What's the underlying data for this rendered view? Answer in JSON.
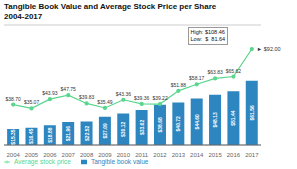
{
  "chart_data": {
    "type": "combo",
    "title": "Tangible Book Value and Average Stock Price per Share",
    "subtitle": "2004-2017",
    "categories": [
      "2004",
      "2005",
      "2006",
      "2007",
      "2008",
      "2009",
      "2010",
      "2011",
      "2012",
      "2013",
      "2014",
      "2015",
      "2016",
      "2017"
    ],
    "series": [
      {
        "name": "Tangible book value",
        "type": "bar",
        "color": "#2E86C1",
        "values": [
          15.35,
          16.45,
          18.88,
          21.96,
          22.52,
          27.09,
          30.12,
          33.62,
          38.68,
          40.72,
          44.6,
          48.13,
          51.44,
          61.56
        ],
        "value_labels": [
          "$15.35",
          "$16.45",
          "$18.88",
          "$21.96",
          "$22.52",
          "$27.09",
          "$30.12",
          "$33.62",
          "$38.68",
          "$40.72",
          "$44.60",
          "$48.13",
          "$51.44",
          "$61.56"
        ]
      },
      {
        "name": "Average stock price",
        "type": "line",
        "color": "#58D68D",
        "marker": "circle",
        "values": [
          38.7,
          35.07,
          43.93,
          47.75,
          39.83,
          35.49,
          43.36,
          39.36,
          39.22,
          51.88,
          58.17,
          63.83,
          65.62,
          92.0
        ],
        "value_labels": [
          "$38.70",
          "$35.07",
          "$43.93",
          "$47.75",
          "$39.83",
          "$35.49",
          "$43.36",
          "$39.36",
          "$39.22",
          "$51.88",
          "$58.17",
          "$63.83",
          "$65.62",
          null
        ]
      }
    ],
    "annotations": [
      "High: $108.46\nLow:  $  81.64",
      "► $92.00"
    ],
    "ylim": [
      0,
      115
    ],
    "yticks": [
      0,
      20,
      40,
      60,
      80,
      100
    ],
    "grid": true,
    "tick_labels": "x",
    "data_labels": true,
    "legend": "lower left"
  }
}
